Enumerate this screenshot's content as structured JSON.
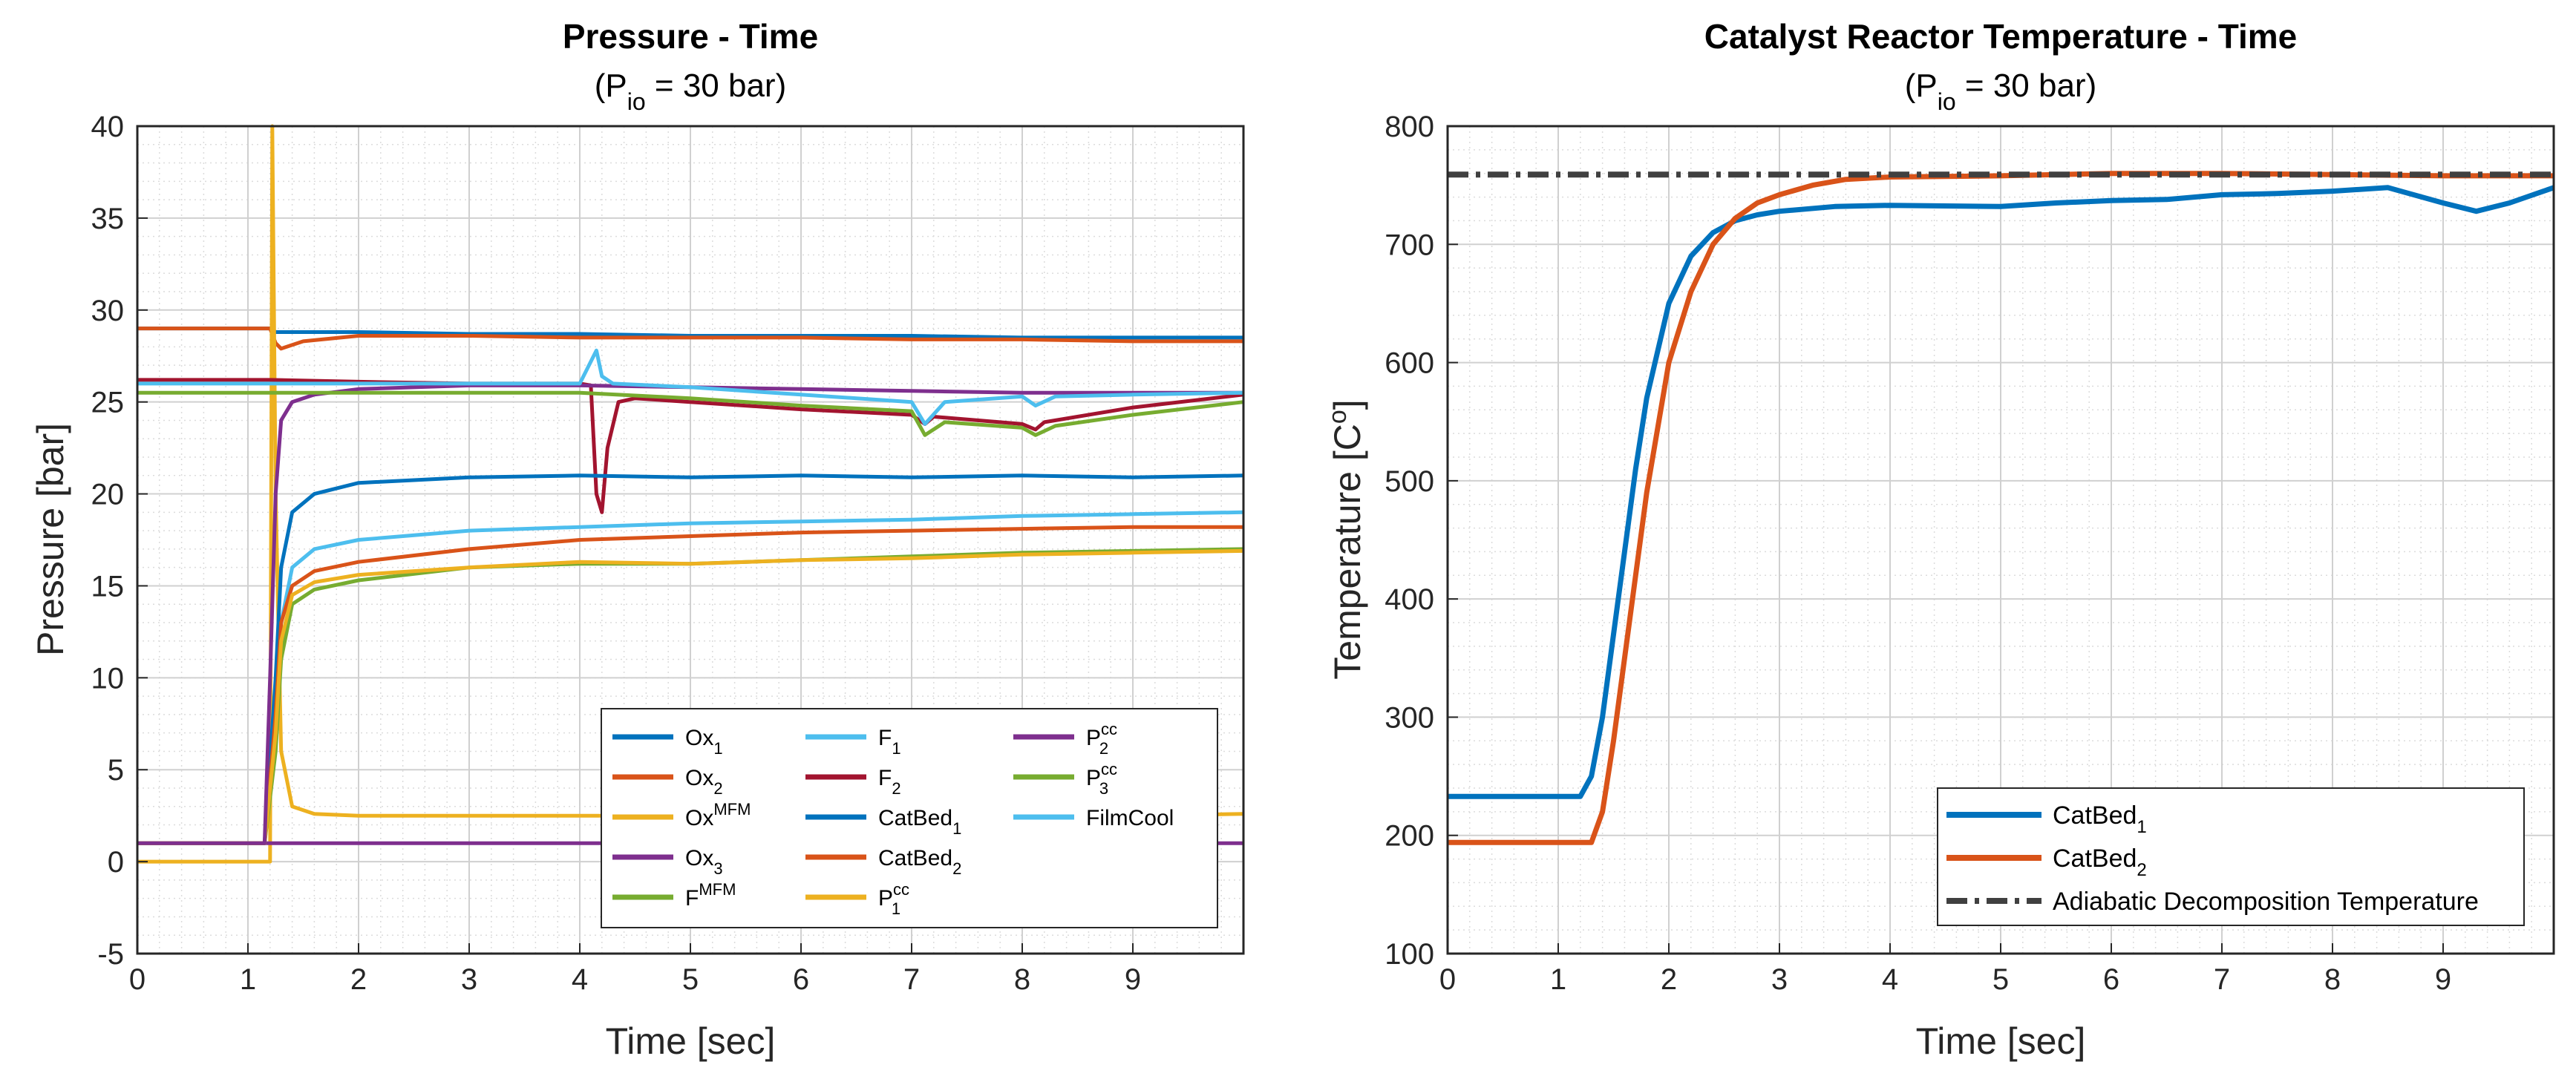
{
  "chart_data": [
    {
      "type": "line",
      "title": "Pressure - Time",
      "subtitle": {
        "pre": "(P",
        "sub": "io",
        "post": " = 30 bar)"
      },
      "xlabel": "Time [sec]",
      "ylabel": "Pressure [bar]",
      "xlim": [
        0,
        10
      ],
      "ylim": [
        -5,
        40
      ],
      "xticks": [
        0,
        1,
        2,
        3,
        4,
        5,
        6,
        7,
        8,
        9
      ],
      "yticks": [
        -5,
        0,
        5,
        10,
        15,
        20,
        25,
        30,
        35,
        40
      ],
      "grid": true,
      "minor_grid": true,
      "legend_position": "bottom-right",
      "legend_columns": 3,
      "series": [
        {
          "name": "Ox",
          "name_sub": "1",
          "color": "#0072BD",
          "x": [
            0,
            1.2,
            1.25,
            1.3,
            1.5,
            2,
            3,
            4,
            5,
            6,
            7,
            8,
            9,
            10
          ],
          "y": [
            29.0,
            29.0,
            28.8,
            28.8,
            28.8,
            28.8,
            28.7,
            28.7,
            28.6,
            28.6,
            28.6,
            28.5,
            28.5,
            28.5
          ]
        },
        {
          "name": "Ox",
          "name_sub": "2",
          "color": "#D95319",
          "x": [
            0,
            1.2,
            1.25,
            1.3,
            1.5,
            2,
            3,
            4,
            5,
            6,
            7,
            8,
            9,
            10
          ],
          "y": [
            29.0,
            29.0,
            28.2,
            27.9,
            28.3,
            28.6,
            28.6,
            28.5,
            28.5,
            28.5,
            28.4,
            28.4,
            28.3,
            28.3
          ]
        },
        {
          "name": "Ox",
          "name_sup": "MFM",
          "color": "#EDB120",
          "x": [
            0,
            1.2,
            1.22,
            1.25,
            1.3,
            1.4,
            1.6,
            2,
            3,
            4,
            5,
            6,
            7,
            8,
            9,
            10
          ],
          "y": [
            0.0,
            0.0,
            40.0,
            20.0,
            6.0,
            3.0,
            2.6,
            2.5,
            2.5,
            2.5,
            2.5,
            2.5,
            2.5,
            2.5,
            2.5,
            2.6
          ]
        },
        {
          "name": "Ox",
          "name_sub": "3",
          "color": "#7E2F8E",
          "x": [
            0,
            10
          ],
          "y": [
            1.0,
            1.0
          ]
        },
        {
          "name": "F",
          "name_sup": "MFM",
          "color": "#77AC30",
          "x": [
            0,
            1.15,
            1.25,
            1.3,
            1.4,
            1.6,
            2,
            3,
            4,
            5,
            6,
            7,
            8,
            9,
            10
          ],
          "y": [
            1.0,
            1.0,
            6.0,
            11.0,
            14.0,
            14.8,
            15.3,
            16.0,
            16.2,
            16.2,
            16.4,
            16.6,
            16.8,
            16.9,
            17.0
          ]
        },
        {
          "name": "F",
          "name_sub": "1",
          "color": "#4DBEEE",
          "x": [
            0,
            1.15,
            1.25,
            1.3,
            1.4,
            1.6,
            2,
            3,
            4,
            5,
            6,
            7,
            8,
            9,
            10
          ],
          "y": [
            1.0,
            1.0,
            8.0,
            13.0,
            16.0,
            17.0,
            17.5,
            18.0,
            18.2,
            18.4,
            18.5,
            18.6,
            18.8,
            18.9,
            19.0
          ]
        },
        {
          "name": "F",
          "name_sub": "2",
          "color": "#A2142F",
          "x": [
            0,
            1.2,
            2,
            3,
            4,
            4.1,
            4.15,
            4.2,
            4.25,
            4.35,
            4.5,
            5,
            6,
            7,
            7.12,
            7.2,
            8,
            8.12,
            8.2,
            9,
            10
          ],
          "y": [
            26.2,
            26.2,
            26.1,
            26.0,
            26.0,
            25.9,
            20.0,
            19.0,
            22.5,
            25.0,
            25.2,
            25.0,
            24.6,
            24.3,
            23.8,
            24.2,
            23.8,
            23.5,
            23.9,
            24.7,
            25.4
          ]
        },
        {
          "name": "CatBed",
          "name_sub": "1",
          "color": "#0072BD",
          "x": [
            0,
            1.15,
            1.25,
            1.3,
            1.4,
            1.6,
            2,
            3,
            4,
            5,
            6,
            7,
            8,
            9,
            10
          ],
          "y": [
            1.0,
            1.0,
            10.0,
            16.0,
            19.0,
            20.0,
            20.6,
            20.9,
            21.0,
            20.9,
            21.0,
            20.9,
            21.0,
            20.9,
            21.0
          ]
        },
        {
          "name": "CatBed",
          "name_sub": "2",
          "color": "#D95319",
          "x": [
            0,
            1.15,
            1.25,
            1.3,
            1.4,
            1.6,
            2,
            3,
            4,
            5,
            6,
            7,
            8,
            9,
            10
          ],
          "y": [
            1.0,
            1.0,
            8.0,
            13.0,
            15.0,
            15.8,
            16.3,
            17.0,
            17.5,
            17.7,
            17.9,
            18.0,
            18.1,
            18.2,
            18.2
          ]
        },
        {
          "name": "P",
          "name_sub": "1",
          "name_sup": "cc",
          "color": "#EDB120",
          "x": [
            0,
            1.15,
            1.25,
            1.3,
            1.4,
            1.6,
            2,
            3,
            4,
            5,
            6,
            7,
            8,
            9,
            10
          ],
          "y": [
            1.0,
            1.0,
            7.0,
            12.0,
            14.5,
            15.2,
            15.6,
            16.0,
            16.3,
            16.2,
            16.4,
            16.5,
            16.7,
            16.8,
            16.9
          ]
        },
        {
          "name": "P",
          "name_sub": "2",
          "name_sup": "cc",
          "color": "#7E2F8E",
          "x": [
            0,
            1.15,
            1.2,
            1.25,
            1.3,
            1.4,
            1.6,
            2,
            3,
            4,
            5,
            6,
            7,
            8,
            9,
            10
          ],
          "y": [
            1.0,
            1.0,
            10.0,
            20.0,
            24.0,
            25.0,
            25.4,
            25.7,
            25.9,
            25.9,
            25.8,
            25.7,
            25.6,
            25.5,
            25.5,
            25.5
          ]
        },
        {
          "name": "P",
          "name_sub": "3",
          "name_sup": "cc",
          "color": "#77AC30",
          "x": [
            0,
            1.2,
            2,
            3,
            4,
            5,
            6,
            7,
            7.12,
            7.3,
            8,
            8.12,
            8.3,
            9,
            10
          ],
          "y": [
            25.5,
            25.5,
            25.5,
            25.5,
            25.5,
            25.2,
            24.8,
            24.5,
            23.2,
            23.9,
            23.6,
            23.2,
            23.7,
            24.3,
            25.0
          ]
        },
        {
          "name": "FilmCool",
          "color": "#4DBEEE",
          "x": [
            0,
            1.2,
            2,
            3,
            4,
            4.15,
            4.2,
            4.3,
            5,
            6,
            7,
            7.12,
            7.3,
            8,
            8.12,
            8.3,
            9,
            10
          ],
          "y": [
            26.0,
            26.0,
            26.0,
            26.0,
            26.0,
            27.8,
            26.4,
            26.0,
            25.8,
            25.4,
            25.0,
            23.8,
            25.0,
            25.3,
            24.8,
            25.3,
            25.4,
            25.5
          ]
        }
      ]
    },
    {
      "type": "line",
      "title": "Catalyst Reactor Temperature - Time",
      "subtitle": {
        "pre": "(P",
        "sub": "io",
        "post": " = 30 bar)"
      },
      "xlabel": "Time [sec]",
      "ylabel": "Temperature [C°]",
      "ylabel_parts": {
        "pre": "Temperature [C",
        "sup": "o",
        "post": "]"
      },
      "xlim": [
        0,
        10
      ],
      "ylim": [
        100,
        800
      ],
      "xticks": [
        0,
        1,
        2,
        3,
        4,
        5,
        6,
        7,
        8,
        9
      ],
      "yticks": [
        100,
        200,
        300,
        400,
        500,
        600,
        700,
        800
      ],
      "grid": true,
      "minor_grid": true,
      "legend_position": "bottom-right",
      "series": [
        {
          "name": "CatBed",
          "name_sub": "1",
          "color": "#0072BD",
          "x": [
            0,
            1.2,
            1.3,
            1.4,
            1.5,
            1.6,
            1.7,
            1.8,
            2.0,
            2.2,
            2.4,
            2.6,
            2.8,
            3.0,
            3.5,
            4,
            5,
            5.5,
            6,
            6.5,
            7,
            7.5,
            8,
            8.5,
            9,
            9.3,
            9.6,
            10
          ],
          "y": [
            233,
            233,
            250,
            300,
            370,
            440,
            510,
            570,
            650,
            690,
            710,
            720,
            725,
            728,
            732,
            733,
            732,
            735,
            737,
            738,
            742,
            743,
            745,
            748,
            735,
            728,
            735,
            748
          ]
        },
        {
          "name": "CatBed",
          "name_sub": "2",
          "color": "#D95319",
          "x": [
            0,
            1.3,
            1.4,
            1.5,
            1.6,
            1.7,
            1.8,
            2.0,
            2.2,
            2.4,
            2.6,
            2.8,
            3.0,
            3.3,
            3.6,
            4,
            5,
            6,
            7,
            8,
            9,
            10
          ],
          "y": [
            194,
            194,
            220,
            280,
            350,
            420,
            490,
            600,
            660,
            700,
            722,
            735,
            742,
            750,
            755,
            757,
            758,
            760,
            760,
            759,
            758,
            758
          ]
        },
        {
          "name": "Adiabatic Decomposition Temperature",
          "color": "#404040",
          "dash": true,
          "x": [
            0,
            10
          ],
          "y": [
            759,
            759
          ]
        }
      ]
    }
  ]
}
